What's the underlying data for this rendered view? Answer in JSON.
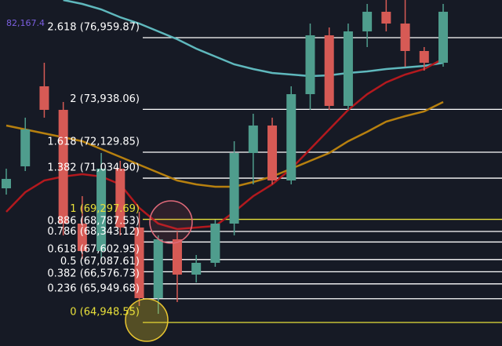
{
  "chart_data": {
    "type": "candlestick",
    "ylim": [
      63956,
      78549
    ],
    "up_color": "#4f9d8d",
    "down_color": "#d65a55",
    "candles": {
      "open": [
        70607,
        71534,
        74909,
        73916,
        69118,
        67960,
        71435,
        68953,
        65975,
        68457,
        66967,
        67464,
        69118,
        72096,
        73255,
        70938,
        74578,
        77060,
        74082,
        77225,
        78053,
        77556,
        76398,
        75902
      ],
      "high": [
        71435,
        73586,
        75902,
        74247,
        70277,
        72096,
        71765,
        69615,
        68622,
        68787,
        67795,
        69284,
        72593,
        73751,
        73586,
        74909,
        77556,
        77391,
        77556,
        78383,
        78549,
        78549,
        76564,
        78383
      ],
      "low": [
        70343,
        71335,
        73586,
        68622,
        67629,
        67629,
        68622,
        65644,
        65313,
        65809,
        66637,
        67298,
        68622,
        70773,
        70773,
        70773,
        73916,
        73916,
        73916,
        76564,
        77225,
        75736,
        75571,
        75736
      ],
      "close": [
        71004,
        73089,
        73916,
        69118,
        67960,
        71435,
        68953,
        65975,
        68457,
        66967,
        67464,
        69118,
        72096,
        73255,
        70938,
        74578,
        77060,
        74082,
        77225,
        78053,
        77556,
        76398,
        75902,
        78053
      ]
    },
    "series": [
      {
        "color": "#5fb8bd",
        "values": [
          null,
          null,
          null,
          78549,
          78383,
          78152,
          77821,
          77556,
          77225,
          76895,
          76497,
          76167,
          75836,
          75637,
          75472,
          75405,
          75339,
          75372,
          75472,
          75538,
          75637,
          75703,
          75769,
          75902
        ]
      },
      {
        "color": "#b3191e",
        "values": [
          69615,
          70442,
          70938,
          71104,
          71203,
          71104,
          70773,
          69780,
          69118,
          68887,
          68953,
          69019,
          69615,
          70277,
          70773,
          71435,
          72262,
          73089,
          73916,
          74578,
          75075,
          75405,
          75637,
          76067
        ]
      },
      {
        "color": "#b7800f",
        "values": [
          73255,
          73089,
          72924,
          72758,
          72593,
          72262,
          71931,
          71600,
          71269,
          70938,
          70773,
          70674,
          70674,
          70872,
          71104,
          71435,
          71765,
          72096,
          72593,
          72990,
          73419,
          73651,
          73850,
          74247
        ]
      }
    ],
    "levels": [
      {
        "label": "2.618 (76,959.87)",
        "value": 76959.87,
        "color": "#ffffff"
      },
      {
        "label": "2 (73,938.06)",
        "value": 73938.06,
        "color": "#ffffff"
      },
      {
        "label": "1.618 (72,129.85)",
        "value": 72129.85,
        "color": "#ffffff"
      },
      {
        "label": "1.382 (71,034.90)",
        "value": 71034.9,
        "color": "#ffffff"
      },
      {
        "label": "1 (69,297.69)",
        "value": 69297.69,
        "color": "#e8e03a"
      },
      {
        "label": "0.886 (68,787.53)",
        "value": 68787.53,
        "color": "#ffffff"
      },
      {
        "label": "0.786 (68,343.12)",
        "value": 68343.12,
        "color": "#ffffff"
      },
      {
        "label": "0.618 (67,602.95)",
        "value": 67602.95,
        "color": "#ffffff"
      },
      {
        "label": "0.5 (67,087.61)",
        "value": 67087.61,
        "color": "#ffffff"
      },
      {
        "label": "0.382 (66,576.73)",
        "value": 66576.73,
        "color": "#ffffff"
      },
      {
        "label": "0.236 (65,949.68)",
        "value": 65949.68,
        "color": "#ffffff"
      },
      {
        "label": "0 (64,948.55)",
        "value": 64948.55,
        "color": "#e8e03a"
      }
    ],
    "annotation": "82,167.4"
  }
}
